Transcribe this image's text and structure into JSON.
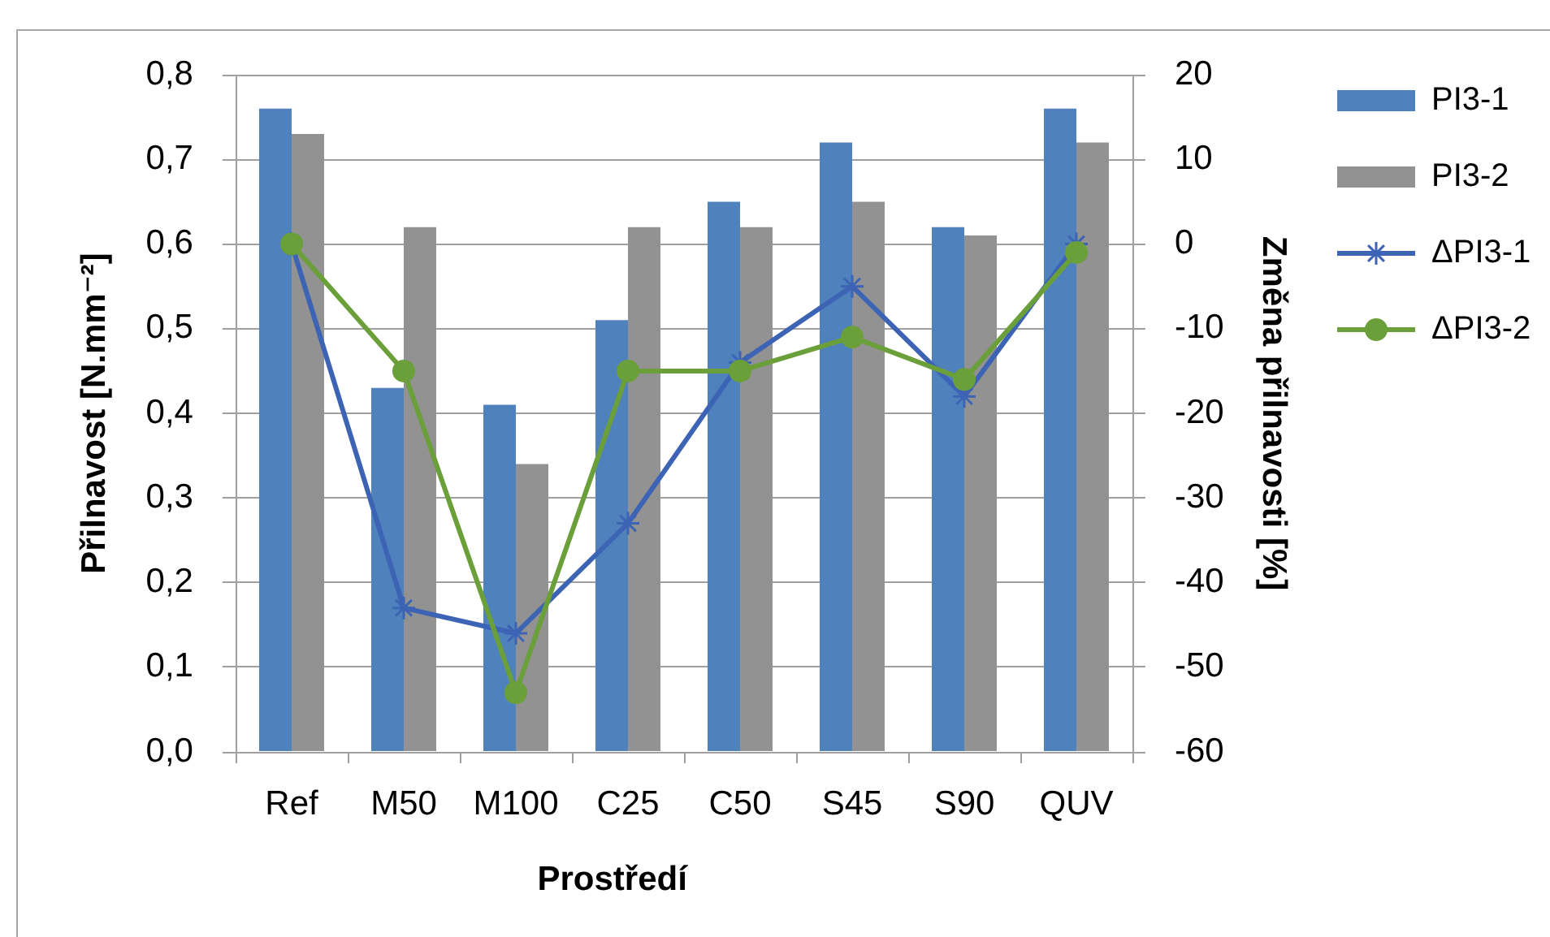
{
  "chart_data": {
    "type": "bar",
    "xlabel": "Prostředí",
    "ylabel": "Přilnavost [N.mm⁻²]",
    "y2label": "Změna přilnavosti [%]",
    "categories": [
      "Ref",
      "M50",
      "M100",
      "C25",
      "C50",
      "S45",
      "S90",
      "QUV"
    ],
    "series": [
      {
        "name": "PI3-1",
        "color": "#4f81bd",
        "values": [
          0.76,
          0.43,
          0.41,
          0.51,
          0.65,
          0.72,
          0.62,
          0.76
        ]
      },
      {
        "name": "PI3-2",
        "color": "#929292",
        "values": [
          0.73,
          0.62,
          0.34,
          0.62,
          0.62,
          0.65,
          0.61,
          0.72
        ]
      },
      {
        "name": "ΔPI3-1",
        "type": "line",
        "axis": "y2",
        "color": "#3d64b4",
        "marker": "cross",
        "values": [
          0,
          -43,
          -46,
          -33,
          -14,
          -5,
          -18,
          0
        ]
      },
      {
        "name": "ΔPI3-2",
        "type": "line",
        "axis": "y2",
        "color": "#6a9f3a",
        "marker": "circle",
        "values": [
          0,
          -15,
          -53,
          -15,
          -15,
          -11,
          -16,
          -1
        ]
      }
    ],
    "ylim": [
      0,
      0.8
    ],
    "yticks": [
      {
        "value": 0,
        "label": "0,0"
      },
      {
        "value": 0.1,
        "label": "0,1"
      },
      {
        "value": 0.2,
        "label": "0,2"
      },
      {
        "value": 0.3,
        "label": "0,3"
      },
      {
        "value": 0.4,
        "label": "0,4"
      },
      {
        "value": 0.5,
        "label": "0,5"
      },
      {
        "value": 0.6,
        "label": "0,6"
      },
      {
        "value": 0.7,
        "label": "0,7"
      },
      {
        "value": 0.8,
        "label": "0,8"
      }
    ],
    "y2lim": [
      -60,
      20
    ],
    "y2ticks": [
      -60,
      -50,
      -40,
      -30,
      -20,
      -10,
      0,
      10,
      20
    ],
    "grid": "y",
    "legend": "top right"
  }
}
